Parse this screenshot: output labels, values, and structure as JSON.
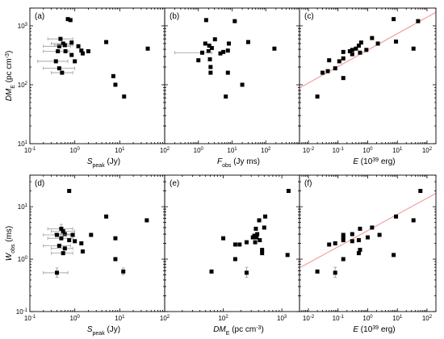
{
  "chart_data": [
    {
      "panel_label": "(a)",
      "type": "scatter",
      "xscale": "log",
      "yscale": "log",
      "xlim": [
        0.1,
        100
      ],
      "ylim": [
        10,
        2000
      ],
      "xlabel": "S",
      "xlabel_sub": "peak",
      "xlabel_tail": " (Jy)",
      "ylabel": "DM",
      "ylabel_sub": "E",
      "ylabel_tail": " (pc cm",
      "ylabel_sup": "-3",
      "ylabel_end": ")",
      "xticks": [
        {
          "v": 0.1,
          "base": "10",
          "exp": "-1"
        },
        {
          "v": 1,
          "base": "10",
          "exp": "0"
        },
        {
          "v": 10,
          "base": "10",
          "exp": "1"
        },
        {
          "v": 100,
          "base": "10",
          "exp": "2"
        }
      ],
      "yticks": [
        {
          "v": 10,
          "base": "10",
          "exp": "1"
        },
        {
          "v": 100,
          "base": "10",
          "exp": "2"
        },
        {
          "v": 1000,
          "base": "10",
          "exp": "3"
        }
      ],
      "points": [
        {
          "x": 0.7,
          "y": 1300
        },
        {
          "x": 0.8,
          "y": 1250
        },
        {
          "x": 0.48,
          "y": 600,
          "xerr": [
            0.25,
            0.9
          ]
        },
        {
          "x": 0.55,
          "y": 500,
          "xerr": [
            0.3,
            0.9
          ]
        },
        {
          "x": 0.45,
          "y": 450,
          "xerr": [
            0.2,
            0.8
          ]
        },
        {
          "x": 0.6,
          "y": 470,
          "xerr": [
            0.35,
            0.9
          ]
        },
        {
          "x": 0.85,
          "y": 520
        },
        {
          "x": 0.42,
          "y": 370,
          "xerr": [
            0.2,
            0.75
          ]
        },
        {
          "x": 0.62,
          "y": 370
        },
        {
          "x": 1.4,
          "y": 380
        },
        {
          "x": 1.5,
          "y": 340
        },
        {
          "x": 1.2,
          "y": 450
        },
        {
          "x": 2.0,
          "y": 370
        },
        {
          "x": 0.85,
          "y": 320
        },
        {
          "x": 1.0,
          "y": 250
        },
        {
          "x": 0.38,
          "y": 250,
          "xerr": [
            0.15,
            0.7
          ]
        },
        {
          "x": 0.45,
          "y": 190,
          "xerr": [
            0.2,
            1.0
          ]
        },
        {
          "x": 0.52,
          "y": 160,
          "xerr": [
            0.3,
            0.9
          ]
        },
        {
          "x": 5.0,
          "y": 530
        },
        {
          "x": 7.2,
          "y": 140
        },
        {
          "x": 8.0,
          "y": 100
        },
        {
          "x": 12.5,
          "y": 63
        },
        {
          "x": 42,
          "y": 410
        }
      ]
    },
    {
      "panel_label": "(b)",
      "type": "scatter",
      "xscale": "log",
      "yscale": "log",
      "xlim": [
        0.1,
        1000
      ],
      "ylim": [
        10,
        2000
      ],
      "xlabel": "F",
      "xlabel_sub": "obs",
      "xlabel_tail": " (Jy ms)",
      "xticks": [
        {
          "v": 1,
          "base": "10",
          "exp": "0"
        },
        {
          "v": 10,
          "base": "10",
          "exp": "1"
        },
        {
          "v": 100,
          "base": "10",
          "exp": "2"
        }
      ],
      "points": [
        {
          "x": 1.7,
          "y": 1250
        },
        {
          "x": 12,
          "y": 1200
        },
        {
          "x": 3.1,
          "y": 590
        },
        {
          "x": 1.6,
          "y": 500
        },
        {
          "x": 2.1,
          "y": 460
        },
        {
          "x": 2.5,
          "y": 420
        },
        {
          "x": 8,
          "y": 500
        },
        {
          "x": 30,
          "y": 530
        },
        {
          "x": 2.0,
          "y": 370
        },
        {
          "x": 1.3,
          "y": 350,
          "xerr": [
            0.2,
            2.5
          ]
        },
        {
          "x": 4.5,
          "y": 340
        },
        {
          "x": 5.5,
          "y": 360
        },
        {
          "x": 7.5,
          "y": 380
        },
        {
          "x": 1.0,
          "y": 260
        },
        {
          "x": 2.2,
          "y": 270
        },
        {
          "x": 2.3,
          "y": 200
        },
        {
          "x": 2.3,
          "y": 160
        },
        {
          "x": 7.5,
          "y": 160
        },
        {
          "x": 20,
          "y": 100
        },
        {
          "x": 6.5,
          "y": 63
        },
        {
          "x": 180,
          "y": 410
        }
      ]
    },
    {
      "panel_label": "(c)",
      "type": "scatter",
      "xscale": "log",
      "yscale": "log",
      "xlim": [
        0.005,
        200
      ],
      "ylim": [
        10,
        2000
      ],
      "xlabel": "E",
      "xlabel_tail": " (10",
      "xlabel_sup": "39",
      "xlabel_end": " erg)",
      "xticks": [
        {
          "v": 0.01,
          "base": "10",
          "exp": "-2"
        },
        {
          "v": 0.1,
          "base": "10",
          "exp": "-1"
        },
        {
          "v": 1,
          "base": "10",
          "exp": "0"
        },
        {
          "v": 10,
          "base": "10",
          "exp": "1"
        },
        {
          "v": 100,
          "base": "10",
          "exp": "2"
        }
      ],
      "fit": {
        "x": [
          0.005,
          200
        ],
        "y": [
          88,
          1700
        ]
      },
      "points": [
        {
          "x": 7.5,
          "y": 1300
        },
        {
          "x": 50,
          "y": 1200
        },
        {
          "x": 9,
          "y": 540
        },
        {
          "x": 2.2,
          "y": 500
        },
        {
          "x": 1.4,
          "y": 620
        },
        {
          "x": 0.6,
          "y": 520
        },
        {
          "x": 0.5,
          "y": 460
        },
        {
          "x": 0.4,
          "y": 410
        },
        {
          "x": 0.9,
          "y": 390
        },
        {
          "x": 0.3,
          "y": 390
        },
        {
          "x": 0.25,
          "y": 370
        },
        {
          "x": 0.15,
          "y": 360
        },
        {
          "x": 0.55,
          "y": 350
        },
        {
          "x": 0.3,
          "y": 330
        },
        {
          "x": 0.15,
          "y": 280
        },
        {
          "x": 0.05,
          "y": 260
        },
        {
          "x": 0.11,
          "y": 250
        },
        {
          "x": 0.08,
          "y": 190
        },
        {
          "x": 0.045,
          "y": 170
        },
        {
          "x": 0.15,
          "y": 130
        },
        {
          "x": 0.03,
          "y": 160
        },
        {
          "x": 0.02,
          "y": 63
        },
        {
          "x": 35,
          "y": 410
        }
      ]
    },
    {
      "panel_label": "(d)",
      "type": "scatter",
      "xscale": "log",
      "yscale": "log",
      "xlim": [
        0.1,
        100
      ],
      "ylim": [
        0.1,
        40
      ],
      "xlabel": "S",
      "xlabel_sub": "peak",
      "xlabel_tail": " (Jy)",
      "ylabel": "W",
      "ylabel_sub": "obs",
      "ylabel_tail": " (ms)",
      "xticks": [
        {
          "v": 0.1,
          "base": "10",
          "exp": "-1"
        },
        {
          "v": 1,
          "base": "10",
          "exp": "0"
        },
        {
          "v": 10,
          "base": "10",
          "exp": "1"
        },
        {
          "v": 100,
          "base": "10",
          "exp": "2"
        }
      ],
      "yticks": [
        {
          "v": 0.1,
          "base": "10",
          "exp": "-1"
        },
        {
          "v": 1,
          "base": "10",
          "exp": "0"
        },
        {
          "v": 10,
          "base": "10",
          "exp": "1"
        }
      ],
      "points": [
        {
          "x": 0.75,
          "y": 20
        },
        {
          "x": 5.0,
          "y": 6.5
        },
        {
          "x": 40,
          "y": 5.5
        },
        {
          "x": 0.5,
          "y": 3.8,
          "xerr": [
            0.25,
            0.9
          ],
          "yerr": [
            3.0,
            4.6
          ]
        },
        {
          "x": 0.55,
          "y": 3.4,
          "xerr": [
            0.3,
            1.0
          ]
        },
        {
          "x": 0.6,
          "y": 3.0,
          "xerr": [
            0.35,
            0.9
          ]
        },
        {
          "x": 0.4,
          "y": 2.9,
          "xerr": [
            0.2,
            0.8
          ]
        },
        {
          "x": 0.5,
          "y": 2.5,
          "xerr": [
            0.25,
            0.9
          ]
        },
        {
          "x": 0.9,
          "y": 2.9
        },
        {
          "x": 2.3,
          "y": 2.9
        },
        {
          "x": 8,
          "y": 2.5
        },
        {
          "x": 0.75,
          "y": 2.3
        },
        {
          "x": 1.0,
          "y": 2.2
        },
        {
          "x": 1.4,
          "y": 2.0
        },
        {
          "x": 0.45,
          "y": 1.8,
          "xerr": [
            0.2,
            0.8
          ]
        },
        {
          "x": 0.6,
          "y": 1.6,
          "xerr": [
            0.3,
            0.9
          ]
        },
        {
          "x": 0.55,
          "y": 1.3,
          "xerr": [
            0.3,
            0.9
          ]
        },
        {
          "x": 1.5,
          "y": 1.4
        },
        {
          "x": 8,
          "y": 1.0
        },
        {
          "x": 12,
          "y": 0.58,
          "yerr": [
            0.5,
            0.68
          ]
        },
        {
          "x": 0.4,
          "y": 0.55,
          "xerr": [
            0.2,
            0.7
          ],
          "yerr": [
            0.45,
            0.68
          ]
        }
      ]
    },
    {
      "panel_label": "(e)",
      "type": "scatter",
      "xscale": "log",
      "yscale": "log",
      "xlim": [
        10,
        2000
      ],
      "ylim": [
        0.1,
        40
      ],
      "xlabel": "DM",
      "xlabel_sub": "E",
      "xlabel_tail": " (pc cm",
      "xlabel_sup": "-3",
      "xlabel_end": ")",
      "xticks": [
        {
          "v": 100,
          "base": "10",
          "exp": "2"
        },
        {
          "v": 1000,
          "base": "10",
          "exp": "3"
        }
      ],
      "points": [
        {
          "x": 1300,
          "y": 20
        },
        {
          "x": 520,
          "y": 6.5
        },
        {
          "x": 410,
          "y": 5.5
        },
        {
          "x": 500,
          "y": 4.0
        },
        {
          "x": 360,
          "y": 3.8
        },
        {
          "x": 380,
          "y": 3.0
        },
        {
          "x": 340,
          "y": 2.8
        },
        {
          "x": 370,
          "y": 2.6
        },
        {
          "x": 320,
          "y": 2.6
        },
        {
          "x": 100,
          "y": 2.5
        },
        {
          "x": 250,
          "y": 2.1
        },
        {
          "x": 190,
          "y": 1.9
        },
        {
          "x": 160,
          "y": 1.9
        },
        {
          "x": 350,
          "y": 2.1
        },
        {
          "x": 420,
          "y": 2.3
        },
        {
          "x": 460,
          "y": 1.5
        },
        {
          "x": 460,
          "y": 1.3
        },
        {
          "x": 160,
          "y": 1.0
        },
        {
          "x": 250,
          "y": 0.55,
          "yerr": [
            0.45,
            0.7
          ]
        },
        {
          "x": 63,
          "y": 0.58
        },
        {
          "x": 1250,
          "y": 1.2
        }
      ]
    },
    {
      "panel_label": "(f)",
      "type": "scatter",
      "xscale": "log",
      "yscale": "log",
      "xlim": [
        0.005,
        200
      ],
      "ylim": [
        0.1,
        40
      ],
      "xlabel": "E",
      "xlabel_tail": " (10",
      "xlabel_sup": "39",
      "xlabel_end": " erg)",
      "xticks": [
        {
          "v": 0.01,
          "base": "10",
          "exp": "-2"
        },
        {
          "v": 0.1,
          "base": "10",
          "exp": "-1"
        },
        {
          "v": 1,
          "base": "10",
          "exp": "0"
        },
        {
          "v": 10,
          "base": "10",
          "exp": "1"
        },
        {
          "v": 100,
          "base": "10",
          "exp": "2"
        }
      ],
      "fit": {
        "x": [
          0.005,
          200
        ],
        "y": [
          0.68,
          18
        ]
      },
      "points": [
        {
          "x": 60,
          "y": 20
        },
        {
          "x": 9,
          "y": 6.5
        },
        {
          "x": 35,
          "y": 5.5
        },
        {
          "x": 1.4,
          "y": 4.0
        },
        {
          "x": 0.55,
          "y": 3.8
        },
        {
          "x": 2.5,
          "y": 2.9
        },
        {
          "x": 0.3,
          "y": 3.0
        },
        {
          "x": 0.15,
          "y": 2.9
        },
        {
          "x": 0.15,
          "y": 2.6
        },
        {
          "x": 0.15,
          "y": 2.3
        },
        {
          "x": 0.3,
          "y": 2.2
        },
        {
          "x": 0.08,
          "y": 2.0
        },
        {
          "x": 0.05,
          "y": 1.9
        },
        {
          "x": 0.5,
          "y": 2.3
        },
        {
          "x": 1.0,
          "y": 2.6
        },
        {
          "x": 0.55,
          "y": 1.5
        },
        {
          "x": 0.5,
          "y": 1.3
        },
        {
          "x": 0.15,
          "y": 1.0
        },
        {
          "x": 7.5,
          "y": 1.2
        },
        {
          "x": 0.08,
          "y": 0.55,
          "yerr": [
            0.45,
            0.7
          ]
        },
        {
          "x": 0.02,
          "y": 0.58
        }
      ]
    }
  ]
}
